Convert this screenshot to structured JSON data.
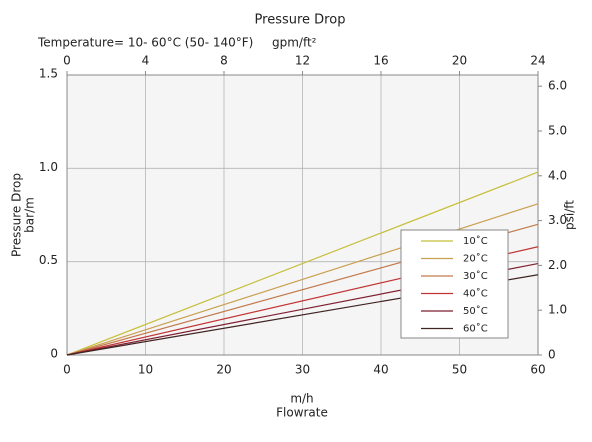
{
  "chart_data": {
    "type": "line",
    "title": "Pressure Drop",
    "annotation": "Temperature= 10- 60°C (50- 140°F)",
    "x2label": "gpm/ft²",
    "ylabel": [
      "Pressure Drop",
      "bar/m"
    ],
    "y2label": "psi/ft",
    "xlabel": [
      "m/h",
      "Flowrate"
    ],
    "x": [
      0,
      60
    ],
    "xlim": [
      0,
      60
    ],
    "xticks": [
      0,
      10,
      20,
      30,
      40,
      50,
      60
    ],
    "x2lim": [
      0,
      24
    ],
    "x2ticks": [
      0,
      4,
      8,
      12,
      16,
      20,
      24
    ],
    "ylim": [
      0,
      1.5
    ],
    "yticks": [
      0,
      0.5,
      {
        "value": 1,
        "label": "1.0"
      },
      {
        "value": 1.5,
        "label": "1.5"
      }
    ],
    "y2lim": [
      0,
      6.25
    ],
    "y2ticks": [
      0,
      {
        "value": 1,
        "label": "1.0"
      },
      {
        "value": 2,
        "label": "2.0"
      },
      {
        "value": 3,
        "label": "3.0"
      },
      {
        "value": 4,
        "label": "4.0"
      },
      {
        "value": 5,
        "label": "5.0"
      },
      {
        "value": 6,
        "label": "6.0"
      }
    ],
    "grid": true,
    "legend": "lower-right",
    "series": [
      {
        "name": "10˚C",
        "color": "#c6bf3a",
        "values": [
          0,
          0.98
        ]
      },
      {
        "name": "20˚C",
        "color": "#c9a04e",
        "values": [
          0,
          0.81
        ]
      },
      {
        "name": "30˚C",
        "color": "#c27a4c",
        "values": [
          0,
          0.7
        ]
      },
      {
        "name": "40˚C",
        "color": "#c23434",
        "values": [
          0,
          0.58
        ]
      },
      {
        "name": "50˚C",
        "color": "#7e1f30",
        "values": [
          0,
          0.49
        ]
      },
      {
        "name": "60˚C",
        "color": "#3f2422",
        "values": [
          0,
          0.43
        ]
      }
    ]
  }
}
